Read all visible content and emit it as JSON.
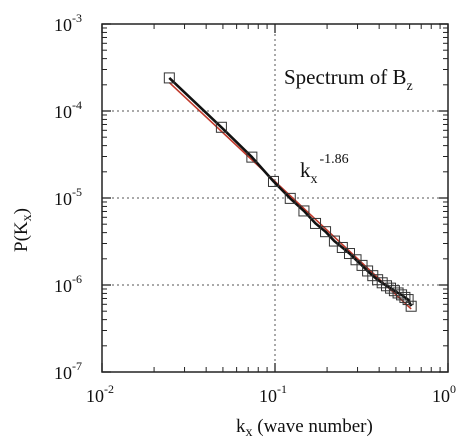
{
  "chart_data": {
    "type": "scatter",
    "title": "",
    "annotation": "Spectrum of B",
    "annotation_subscript": "z",
    "slope_label": "k",
    "slope_label_subscript": "x",
    "slope_label_exponent": "-1.86",
    "xlabel": "k",
    "xlabel_subscript": "x",
    "xlabel_suffix": " (wave number)",
    "ylabel": "P(K",
    "ylabel_subscript": "x",
    "ylabel_suffix": ")",
    "xscale": "log",
    "yscale": "log",
    "xlim": [
      0.01,
      1
    ],
    "ylim": [
      1e-07,
      0.001
    ],
    "grid": "dotted",
    "x_ticks": [
      {
        "base": "10",
        "exp": "-2",
        "value": 0.01
      },
      {
        "base": "10",
        "exp": "-1",
        "value": 0.1
      },
      {
        "base": "10",
        "exp": "0",
        "value": 1
      }
    ],
    "y_ticks": [
      {
        "base": "10",
        "exp": "-7",
        "value": 1e-07
      },
      {
        "base": "10",
        "exp": "-6",
        "value": 1e-06
      },
      {
        "base": "10",
        "exp": "-5",
        "value": 1e-05
      },
      {
        "base": "10",
        "exp": "-4",
        "value": 0.0001
      },
      {
        "base": "10",
        "exp": "-3",
        "value": 0.001
      }
    ],
    "series": [
      {
        "marker": "open-square",
        "color": "#333333",
        "x": [
          0.0245,
          0.049,
          0.0735,
          0.098,
          0.1225,
          0.147,
          0.1715,
          0.196,
          0.2205,
          0.245,
          0.2695,
          0.294,
          0.3185,
          0.343,
          0.3675,
          0.392,
          0.4165,
          0.441,
          0.4655,
          0.49,
          0.5145,
          0.539,
          0.5635,
          0.588,
          0.6125
        ],
        "y": [
          0.00024,
          6.5e-05,
          2.95e-05,
          1.55e-05,
          9.9e-06,
          7.1e-06,
          5.1e-06,
          4.1e-06,
          3.2e-06,
          2.7e-06,
          2.3e-06,
          1.95e-06,
          1.68e-06,
          1.45e-06,
          1.28e-06,
          1.15e-06,
          1.06e-06,
          9.8e-07,
          9.2e-07,
          8.6e-07,
          8.1e-07,
          7.7e-07,
          7.2e-07,
          6.8e-07,
          5.7e-07
        ]
      }
    ],
    "fit_line": {
      "color": "#c0392b",
      "slope": -1.86,
      "x": [
        0.0245,
        0.6125
      ],
      "y": [
        0.00023,
        5.75e-07
      ]
    },
    "data_line": {
      "color": "#111111"
    }
  }
}
